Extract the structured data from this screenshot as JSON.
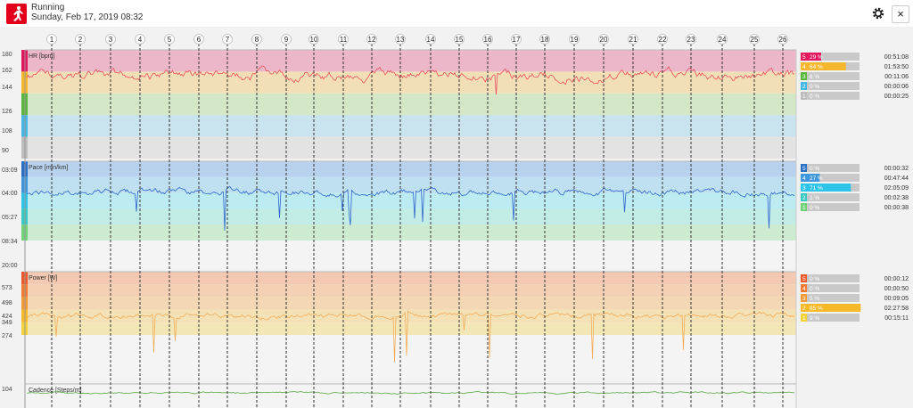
{
  "app": {
    "title": "Running",
    "date": "Sunday, Feb 17, 2019 08:32",
    "close_label": "×"
  },
  "icons": {
    "app": "running-man-icon",
    "settings": "gear-icon",
    "close": "close-icon"
  },
  "chart_data": {
    "type": "line",
    "laps": [
      "1",
      "2",
      "3",
      "4",
      "5",
      "6",
      "7",
      "8",
      "9",
      "10",
      "11",
      "12",
      "13",
      "14",
      "15",
      "16",
      "17",
      "18",
      "19",
      "20",
      "21",
      "22",
      "23",
      "24",
      "25",
      "26"
    ],
    "panels": [
      {
        "label": "HR [bpm]",
        "line_color": "#e8525f",
        "ticks": [
          "180",
          "162",
          "144",
          "126",
          "108",
          "90"
        ],
        "zones": [
          {
            "num": "5",
            "pct": "29 %",
            "frac": 0.29,
            "time": "00:51:08",
            "color": "#e2175d",
            "band": "#ecb7c8"
          },
          {
            "num": "4",
            "pct": "64 %",
            "frac": 0.64,
            "time": "01:53:50",
            "color": "#f6b72d",
            "band": "#f3dfb7"
          },
          {
            "num": "3",
            "pct": "6 %",
            "frac": 0.06,
            "time": "00:11:06",
            "color": "#5ab63c",
            "band": "#d4e7c6"
          },
          {
            "num": "2",
            "pct": "0 %",
            "frac": 0.0,
            "time": "00:00:06",
            "color": "#43b6e4",
            "band": "#c9e4ef"
          },
          {
            "num": "1",
            "pct": "0 %",
            "frac": 0.0,
            "time": "00:00:25",
            "color": "#bdbdbd",
            "band": "#e3e3e3"
          }
        ]
      },
      {
        "label": "Pace [min/km]",
        "line_color": "#2f63cc",
        "ticks": [
          "03:09",
          "04:00",
          "05:27",
          "08:34",
          "20:00"
        ],
        "zones": [
          {
            "num": "5",
            "pct": "0 %",
            "frac": 0.0,
            "time": "00:00:32",
            "color": "#2a6fc6",
            "band": "#b8d2ee"
          },
          {
            "num": "4",
            "pct": "27 %",
            "frac": 0.27,
            "time": "00:47:44",
            "color": "#3e97dc",
            "band": "#bee0f1"
          },
          {
            "num": "3",
            "pct": "71 %",
            "frac": 0.71,
            "time": "02:05:09",
            "color": "#2cc4e8",
            "band": "#bdebf2"
          },
          {
            "num": "2",
            "pct": "1 %",
            "frac": 0.01,
            "time": "00:02:38",
            "color": "#38c9c3",
            "band": "#c2ece6"
          },
          {
            "num": "1",
            "pct": "0 %",
            "frac": 0.0,
            "time": "00:00:38",
            "color": "#72d27a",
            "band": "#cdebd0"
          }
        ]
      },
      {
        "label": "Power [W]",
        "line_color": "#f2ad5b",
        "ticks": [
          "573",
          "498",
          "424",
          "349",
          "274"
        ],
        "zones": [
          {
            "num": "5",
            "pct": "0 %",
            "frac": 0.0,
            "time": "00:00:12",
            "color": "#ec5a2c",
            "band": "#f3c9b3"
          },
          {
            "num": "4",
            "pct": "0 %",
            "frac": 0.0,
            "time": "00:00:50",
            "color": "#f07a32",
            "band": "#f4d0b4"
          },
          {
            "num": "3",
            "pct": "5 %",
            "frac": 0.05,
            "time": "00:09:05",
            "color": "#f39a36",
            "band": "#f4d8b6"
          },
          {
            "num": "2",
            "pct": "85 %",
            "frac": 0.85,
            "time": "02:27:58",
            "color": "#f7b928",
            "band": "#f4e1b5"
          },
          {
            "num": "1",
            "pct": "9 %",
            "frac": 0.09,
            "time": "00:15:11",
            "color": "#f5d23a",
            "band": "#f3e7b8"
          }
        ]
      },
      {
        "label": "Cadence [Steps/m]",
        "line_color": "#5aa845",
        "ticks": [
          "104"
        ]
      }
    ]
  }
}
